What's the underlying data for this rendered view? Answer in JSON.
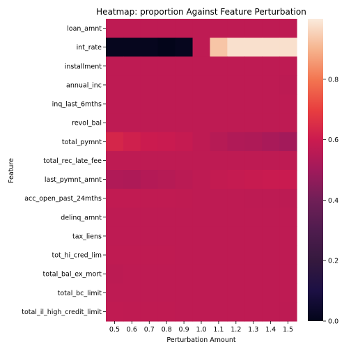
{
  "chart_data": {
    "type": "heatmap",
    "title": "Heatmap: proportion Against Feature Perturbation",
    "xlabel": "Perturbation Amount",
    "ylabel": "Feature",
    "x": [
      "0.5",
      "0.6",
      "0.7",
      "0.8",
      "0.9",
      "1.0",
      "1.1",
      "1.2",
      "1.3",
      "1.4",
      "1.5"
    ],
    "y": [
      "loan_amnt",
      "int_rate",
      "installment",
      "annual_inc",
      "inq_last_6mths",
      "revol_bal",
      "total_pymnt",
      "total_rec_late_fee",
      "last_pymnt_amnt",
      "acc_open_past_24mths",
      "delinq_amnt",
      "tax_liens",
      "tot_hi_cred_lim",
      "total_bal_ex_mort",
      "total_bc_limit",
      "total_il_high_credit_limit"
    ],
    "values": [
      [
        0.57,
        0.57,
        0.57,
        0.57,
        0.57,
        0.57,
        0.57,
        0.57,
        0.57,
        0.57,
        0.57
      ],
      [
        0.01,
        0.01,
        0.01,
        0.0,
        0.01,
        0.57,
        0.93,
        0.98,
        0.98,
        0.98,
        0.98
      ],
      [
        0.57,
        0.57,
        0.57,
        0.57,
        0.57,
        0.57,
        0.57,
        0.57,
        0.57,
        0.57,
        0.57
      ],
      [
        0.57,
        0.57,
        0.57,
        0.57,
        0.57,
        0.57,
        0.57,
        0.57,
        0.57,
        0.57,
        0.565
      ],
      [
        0.57,
        0.57,
        0.57,
        0.57,
        0.57,
        0.57,
        0.57,
        0.57,
        0.57,
        0.57,
        0.57
      ],
      [
        0.57,
        0.57,
        0.57,
        0.57,
        0.57,
        0.57,
        0.57,
        0.57,
        0.57,
        0.57,
        0.57
      ],
      [
        0.63,
        0.615,
        0.6,
        0.595,
        0.585,
        0.57,
        0.55,
        0.535,
        0.53,
        0.52,
        0.505
      ],
      [
        0.57,
        0.57,
        0.57,
        0.57,
        0.57,
        0.57,
        0.57,
        0.57,
        0.57,
        0.57,
        0.57
      ],
      [
        0.535,
        0.53,
        0.545,
        0.55,
        0.56,
        0.57,
        0.58,
        0.585,
        0.59,
        0.595,
        0.595
      ],
      [
        0.575,
        0.575,
        0.573,
        0.573,
        0.572,
        0.57,
        0.57,
        0.568,
        0.567,
        0.566,
        0.565
      ],
      [
        0.57,
        0.57,
        0.57,
        0.57,
        0.57,
        0.57,
        0.57,
        0.57,
        0.57,
        0.57,
        0.57
      ],
      [
        0.57,
        0.57,
        0.57,
        0.57,
        0.57,
        0.57,
        0.57,
        0.57,
        0.57,
        0.57,
        0.57
      ],
      [
        0.572,
        0.572,
        0.571,
        0.571,
        0.57,
        0.57,
        0.57,
        0.57,
        0.57,
        0.569,
        0.569
      ],
      [
        0.565,
        0.57,
        0.57,
        0.57,
        0.57,
        0.57,
        0.57,
        0.57,
        0.57,
        0.57,
        0.57
      ],
      [
        0.57,
        0.57,
        0.57,
        0.57,
        0.57,
        0.57,
        0.57,
        0.57,
        0.57,
        0.57,
        0.57
      ],
      [
        0.573,
        0.572,
        0.572,
        0.571,
        0.57,
        0.57,
        0.57,
        0.569,
        0.569,
        0.568,
        0.567
      ]
    ],
    "colorbar": {
      "colormap": "rocket",
      "range": [
        0.0,
        1.0
      ],
      "ticks": [
        "0.0",
        "0.2",
        "0.4",
        "0.6",
        "0.8"
      ]
    },
    "grid": false,
    "legend": "none"
  }
}
